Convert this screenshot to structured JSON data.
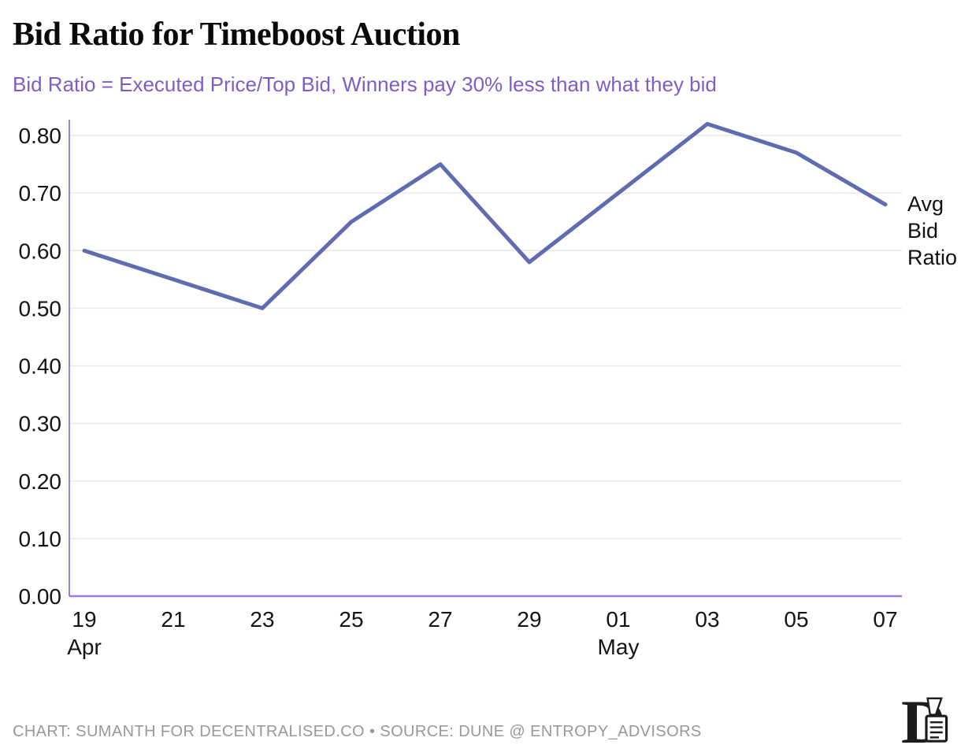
{
  "chart_data": {
    "type": "line",
    "title": "Bid Ratio for Timeboost Auction",
    "subtitle": "Bid Ratio = Executed Price/Top Bid, Winners pay 30% less than what they bid",
    "categories": [
      "Apr 19",
      "Apr 21",
      "Apr 23",
      "Apr 25",
      "Apr 27",
      "Apr 29",
      "May 01",
      "May 03",
      "May 05",
      "May 07"
    ],
    "x_ticks": [
      {
        "day": "19",
        "month": "Apr"
      },
      {
        "day": "21",
        "month": ""
      },
      {
        "day": "23",
        "month": ""
      },
      {
        "day": "25",
        "month": ""
      },
      {
        "day": "27",
        "month": ""
      },
      {
        "day": "29",
        "month": ""
      },
      {
        "day": "01",
        "month": "May"
      },
      {
        "day": "03",
        "month": ""
      },
      {
        "day": "05",
        "month": ""
      },
      {
        "day": "07",
        "month": ""
      }
    ],
    "series": [
      {
        "name": "Avg Bid Ratio",
        "label_lines": [
          "Avg",
          "Bid",
          "Ratio"
        ],
        "color": "#5f6db0",
        "values": [
          0.6,
          0.55,
          0.5,
          0.65,
          0.75,
          0.58,
          0.7,
          0.82,
          0.77,
          0.68
        ]
      }
    ],
    "y_ticks": [
      "0.00",
      "0.10",
      "0.20",
      "0.30",
      "0.40",
      "0.50",
      "0.60",
      "0.70",
      "0.80"
    ],
    "ylim": [
      0,
      0.82
    ],
    "grid": true,
    "legend_position": "right of line end",
    "colors": {
      "axis": "#9b7fd4",
      "grid": "#e9e9e9",
      "tick_text": "#141414",
      "series_label_text": "#111111",
      "subtitle": "#7d5ec6",
      "title": "#0a0a0a",
      "footer": "#98989f"
    }
  },
  "footer": {
    "credit": "CHART: SUMANTH FOR DECENTRALISED.CO • SOURCE: DUNE @ ENTROPY_ADVISORS"
  },
  "logo_name": "decentralised-logo"
}
